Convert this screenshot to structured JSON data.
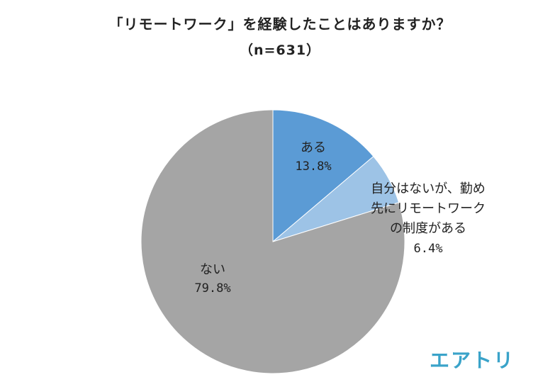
{
  "title": "「リモートワーク」を経験したことはありますか？",
  "subtitle": "（n=631）",
  "logo_text": "エアトリ",
  "colors": {
    "logo": "#3aa3c9"
  },
  "chart_data": {
    "type": "pie",
    "start": "12 o'clock",
    "direction": "clockwise",
    "slices": [
      {
        "label_lines": [
          "ある"
        ],
        "value": 13.8,
        "value_label": "13.8%",
        "color": "#5b9bd5"
      },
      {
        "label_lines": [
          "自分はないが、勤め",
          "先にリモートワーク",
          "の制度がある"
        ],
        "value": 6.4,
        "value_label": "6.4%",
        "color": "#9dc3e6"
      },
      {
        "label_lines": [
          "ない"
        ],
        "value": 79.8,
        "value_label": "79.8%",
        "color": "#a5a5a5"
      }
    ]
  }
}
